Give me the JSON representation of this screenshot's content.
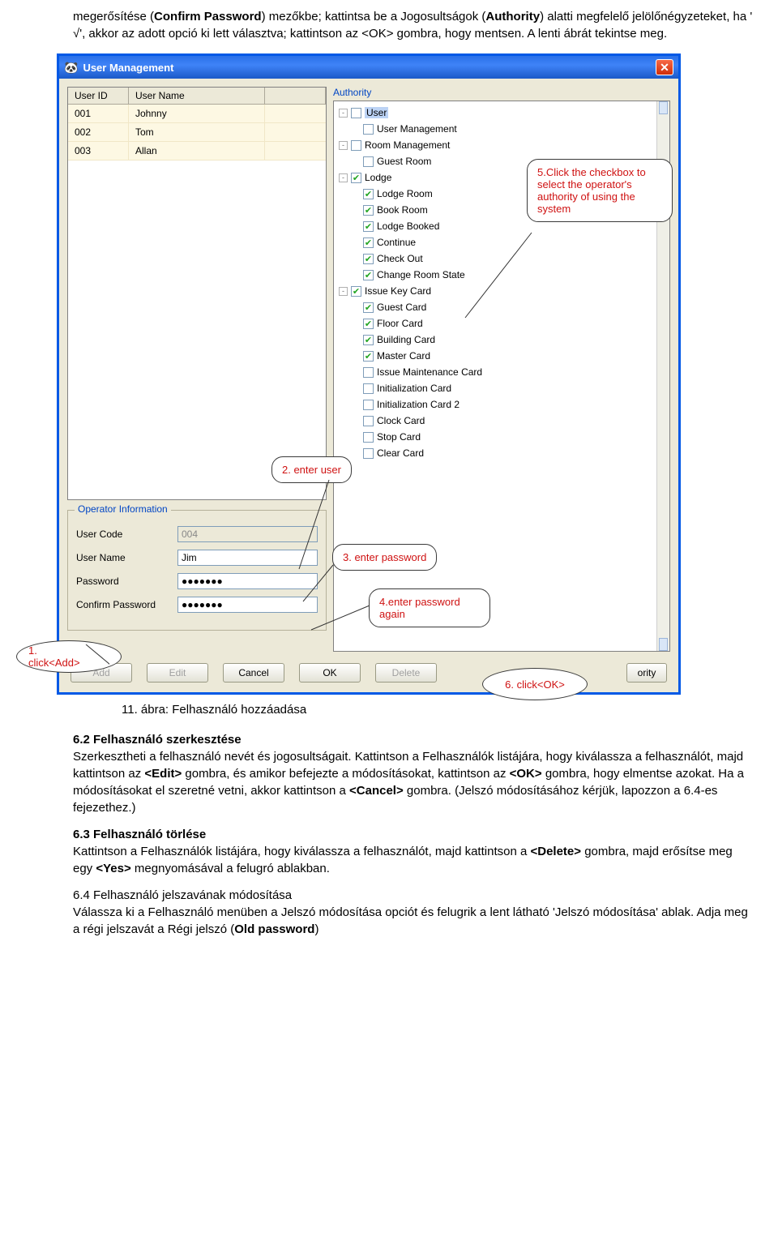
{
  "intro": {
    "text_a": "megerősítése (",
    "confirm_pw": "Confirm Password",
    "text_b": ") mezőkbe; kattintsa be a Jogosultságok (",
    "authority": "Authority",
    "text_c": ") alatti megfelelő jelölőnégyzeteket, ha ' √', akkor az adott opció ki lett választva; kattintson az <OK> gombra, hogy mentsen. A lenti ábrát tekintse meg."
  },
  "window": {
    "title": "User Management",
    "user_list": {
      "headers": {
        "id": "User ID",
        "name": "User Name"
      },
      "rows": [
        {
          "id": "001",
          "name": "Johnny"
        },
        {
          "id": "002",
          "name": "Tom"
        },
        {
          "id": "003",
          "name": "Allan"
        }
      ]
    },
    "op_info": {
      "title": "Operator Information",
      "labels": {
        "code": "User Code",
        "name": "User Name",
        "pw": "Password",
        "cpw": "Confirm Password"
      },
      "values": {
        "code": "004",
        "name": "Jim",
        "pw": "●●●●●●●",
        "cpw": "●●●●●●●"
      }
    },
    "authority": {
      "label": "Authority",
      "nodes": [
        {
          "l": 0,
          "c": false,
          "t": "User",
          "sel": true,
          "exp": "-"
        },
        {
          "l": 1,
          "c": false,
          "t": "User Management"
        },
        {
          "l": 0,
          "c": false,
          "t": "Room Management",
          "exp": "-"
        },
        {
          "l": 1,
          "c": false,
          "t": "Guest Room"
        },
        {
          "l": 0,
          "c": true,
          "t": "Lodge",
          "exp": "-"
        },
        {
          "l": 1,
          "c": true,
          "t": "Lodge Room"
        },
        {
          "l": 1,
          "c": true,
          "t": "Book Room"
        },
        {
          "l": 1,
          "c": true,
          "t": "Lodge Booked"
        },
        {
          "l": 1,
          "c": true,
          "t": "Continue"
        },
        {
          "l": 1,
          "c": true,
          "t": "Check Out"
        },
        {
          "l": 1,
          "c": true,
          "t": "Change Room State"
        },
        {
          "l": 0,
          "c": true,
          "t": "Issue Key Card",
          "exp": "-"
        },
        {
          "l": 1,
          "c": true,
          "t": "Guest Card"
        },
        {
          "l": 1,
          "c": true,
          "t": "Floor Card"
        },
        {
          "l": 1,
          "c": true,
          "t": "Building Card"
        },
        {
          "l": 1,
          "c": true,
          "t": "Master Card"
        },
        {
          "l": 1,
          "c": false,
          "t": "Issue Maintenance Card"
        },
        {
          "l": 1,
          "c": false,
          "t": "Initialization Card"
        },
        {
          "l": 1,
          "c": false,
          "t": "Initialization Card 2"
        },
        {
          "l": 1,
          "c": false,
          "t": "Clock Card"
        },
        {
          "l": 1,
          "c": false,
          "t": "Stop Card"
        },
        {
          "l": 1,
          "c": false,
          "t": "Clear Card"
        }
      ]
    },
    "buttons": {
      "add": "Add",
      "edit": "Edit",
      "cancel": "Cancel",
      "ok": "OK",
      "delete": "Delete",
      "authority": "ority"
    }
  },
  "callouts": {
    "c1": "1. click<Add>",
    "c2": "2. enter user",
    "c3": "3. enter password",
    "c4": "4.enter password again",
    "c5": "5.Click the checkbox to select the operator's authority of using the system",
    "c6": "6. click<OK>"
  },
  "caption": "11. ábra: Felhasználó hozzáadása",
  "sec62_title": "6.2 Felhasználó szerkesztése",
  "sec62_body_a": "Szerkesztheti a felhasználó nevét és jogosultságait. Kattintson a Felhasználók listájára, hogy kiválassza a felhasználót, majd kattintson az ",
  "sec62_edit": "<Edit>",
  "sec62_body_b": " gombra, és amikor befejezte a módosításokat, kattintson az ",
  "sec62_ok": "<OK>",
  "sec62_body_c": " gombra, hogy elmentse azokat. Ha a módosításokat el szeretné vetni, akkor kattintson a ",
  "sec62_cancel": "<Cancel>",
  "sec62_body_d": " gombra. (Jelszó módosításához kérjük, lapozzon a 6.4-es fejezethez.)",
  "sec63_title": "6.3 Felhasználó törlése",
  "sec63_body_a": "Kattintson a Felhasználók listájára, hogy kiválassza a felhasználót, majd kattintson a ",
  "sec63_del": "<Delete>",
  "sec63_body_b": " gombra, majd erősítse meg egy ",
  "sec63_yes": "<Yes>",
  "sec63_body_c": " megnyomásával a felugró ablakban.",
  "sec64_title": "6.4  Felhasználó jelszavának módosítása",
  "sec64_body_a": "Válassza ki a Felhasználó menüben a Jelszó módosítása opciót és felugrik a lent látható 'Jelszó módosítása' ablak. Adja meg a régi jelszavát a Régi jelszó (",
  "sec64_old": "Old password",
  "sec64_body_b": ")"
}
